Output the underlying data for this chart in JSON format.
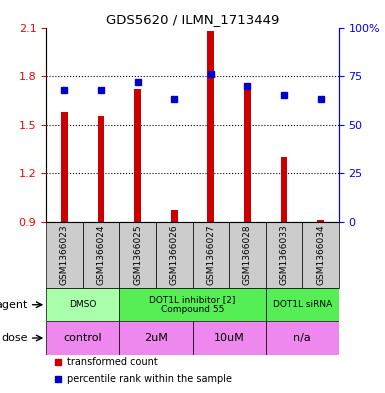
{
  "title": "GDS5620 / ILMN_1713449",
  "samples": [
    "GSM1366023",
    "GSM1366024",
    "GSM1366025",
    "GSM1366026",
    "GSM1366027",
    "GSM1366028",
    "GSM1366033",
    "GSM1366034"
  ],
  "red_values": [
    1.58,
    1.55,
    1.72,
    0.97,
    2.08,
    1.72,
    1.3,
    0.91
  ],
  "blue_values": [
    0.68,
    0.68,
    0.72,
    0.63,
    0.76,
    0.7,
    0.65,
    0.63
  ],
  "red_base": 0.9,
  "ylim": [
    0.9,
    2.1
  ],
  "yticks_left": [
    0.9,
    1.2,
    1.5,
    1.8,
    2.1
  ],
  "yticks_right": [
    0,
    25,
    50,
    75,
    100
  ],
  "ytick_labels_right": [
    "0",
    "25",
    "50",
    "75",
    "100%"
  ],
  "dotted_lines": [
    1.2,
    1.5,
    1.8
  ],
  "bar_width": 0.18,
  "bar_color": "#cc0000",
  "blue_color": "#0000cc",
  "gray_box_color": "#cccccc",
  "agent_groups": [
    {
      "label": "DMSO",
      "cols": [
        0,
        1
      ],
      "color": "#aaffaa"
    },
    {
      "label": "DOT1L inhibitor [2]\nCompound 55",
      "cols": [
        2,
        3,
        4,
        5
      ],
      "color": "#55ee55"
    },
    {
      "label": "DOT1L siRNA",
      "cols": [
        6,
        7
      ],
      "color": "#55ee55"
    }
  ],
  "dose_groups": [
    {
      "label": "control",
      "cols": [
        0,
        1
      ],
      "color": "#ee88ee"
    },
    {
      "label": "2uM",
      "cols": [
        2,
        3
      ],
      "color": "#ee88ee"
    },
    {
      "label": "10uM",
      "cols": [
        4,
        5
      ],
      "color": "#ee88ee"
    },
    {
      "label": "n/a",
      "cols": [
        6,
        7
      ],
      "color": "#ee88ee"
    }
  ],
  "legend_red": "transformed count",
  "legend_blue": "percentile rank within the sample",
  "agent_label": "agent",
  "dose_label": "dose",
  "fig_width": 3.85,
  "fig_height": 3.93
}
